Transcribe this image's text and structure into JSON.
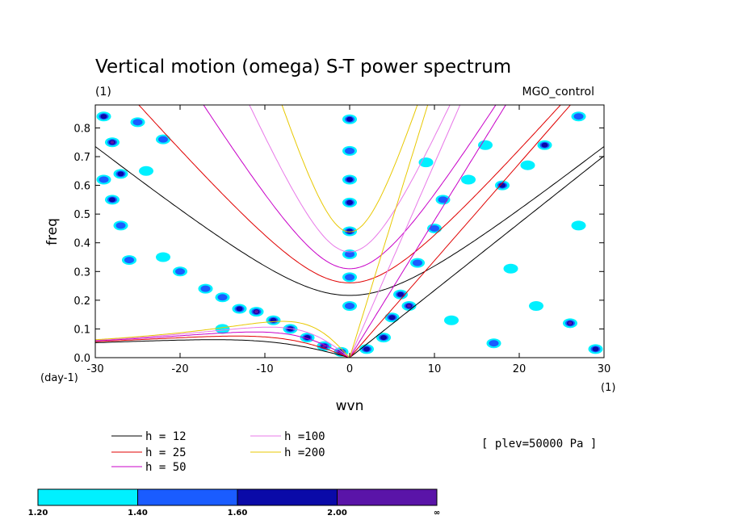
{
  "chart_data": {
    "type": "heatmap",
    "title": "Vertical motion (omega) S-T power spectrum",
    "unit_left": "(1)",
    "run_label": "MGO_control",
    "xlabel": "wvn",
    "ylabel": "freq",
    "x_unit": "(1)",
    "y_unit": "(day-1)",
    "xlim": [
      -30,
      30
    ],
    "ylim": [
      0.0,
      0.88
    ],
    "x_ticks": [
      -30,
      -20,
      -10,
      0,
      10,
      20,
      30
    ],
    "x_tick_labels": [
      "-30",
      "-20",
      "-10",
      "0",
      "10",
      "20",
      "30"
    ],
    "y_ticks": [
      0.0,
      0.1,
      0.2,
      0.3,
      0.4,
      0.5,
      0.6,
      0.7,
      0.8
    ],
    "y_tick_labels": [
      "0.0",
      "0.1",
      "0.2",
      "0.3",
      "0.4",
      "0.5",
      "0.6",
      "0.7",
      "0.8"
    ],
    "annotation": "[ plev=50000 Pa ]",
    "colorbar": {
      "boundaries": [
        "1.20",
        "1.40",
        "1.60",
        "2.00",
        "∞"
      ],
      "colors": [
        "#00f0ff",
        "#1a5cff",
        "#0a0aa8",
        "#5a14a8"
      ]
    },
    "dispersion_curves": [
      {
        "label": "h = 12",
        "h": 12,
        "color": "#000000"
      },
      {
        "label": "h = 25",
        "h": 25,
        "color": "#e00000"
      },
      {
        "label": "h = 50",
        "h": 50,
        "color": "#c800c8"
      },
      {
        "label": "h =100",
        "h": 100,
        "color": "#e878e8"
      },
      {
        "label": "h =200",
        "h": 200,
        "color": "#e8c800"
      }
    ],
    "power_regions": [
      {
        "wvn": -28,
        "freq": 0.75,
        "level": 3
      },
      {
        "wvn": -29,
        "freq": 0.84,
        "level": 2
      },
      {
        "wvn": -27,
        "freq": 0.64,
        "level": 2
      },
      {
        "wvn": -28,
        "freq": 0.55,
        "level": 2
      },
      {
        "wvn": -27,
        "freq": 0.46,
        "level": 1
      },
      {
        "wvn": -25,
        "freq": 0.82,
        "level": 1
      },
      {
        "wvn": -29,
        "freq": 0.62,
        "level": 1
      },
      {
        "wvn": -24,
        "freq": 0.65,
        "level": 0
      },
      {
        "wvn": -22,
        "freq": 0.76,
        "level": 1
      },
      {
        "wvn": -26,
        "freq": 0.34,
        "level": 1
      },
      {
        "wvn": -22,
        "freq": 0.35,
        "level": 0
      },
      {
        "wvn": -20,
        "freq": 0.3,
        "level": 1
      },
      {
        "wvn": -17,
        "freq": 0.24,
        "level": 1
      },
      {
        "wvn": -15,
        "freq": 0.21,
        "level": 1
      },
      {
        "wvn": -13,
        "freq": 0.17,
        "level": 2
      },
      {
        "wvn": -11,
        "freq": 0.16,
        "level": 3
      },
      {
        "wvn": -9,
        "freq": 0.13,
        "level": 2
      },
      {
        "wvn": -7,
        "freq": 0.1,
        "level": 2
      },
      {
        "wvn": -5,
        "freq": 0.07,
        "level": 2
      },
      {
        "wvn": -3,
        "freq": 0.04,
        "level": 3
      },
      {
        "wvn": -1,
        "freq": 0.02,
        "level": 3
      },
      {
        "wvn": -15,
        "freq": 0.1,
        "level": 0
      },
      {
        "wvn": 0,
        "freq": 0.83,
        "level": 2
      },
      {
        "wvn": 0,
        "freq": 0.72,
        "level": 1
      },
      {
        "wvn": 0,
        "freq": 0.62,
        "level": 2
      },
      {
        "wvn": 0,
        "freq": 0.54,
        "level": 2
      },
      {
        "wvn": 0,
        "freq": 0.44,
        "level": 2
      },
      {
        "wvn": 0,
        "freq": 0.36,
        "level": 1
      },
      {
        "wvn": 0,
        "freq": 0.28,
        "level": 1
      },
      {
        "wvn": 0,
        "freq": 0.18,
        "level": 1
      },
      {
        "wvn": 6,
        "freq": 0.22,
        "level": 2
      },
      {
        "wvn": 7,
        "freq": 0.18,
        "level": 3
      },
      {
        "wvn": 5,
        "freq": 0.14,
        "level": 2
      },
      {
        "wvn": 4,
        "freq": 0.07,
        "level": 2
      },
      {
        "wvn": 2,
        "freq": 0.03,
        "level": 2
      },
      {
        "wvn": 8,
        "freq": 0.33,
        "level": 1
      },
      {
        "wvn": 10,
        "freq": 0.45,
        "level": 1
      },
      {
        "wvn": 11,
        "freq": 0.55,
        "level": 1
      },
      {
        "wvn": 9,
        "freq": 0.68,
        "level": 0
      },
      {
        "wvn": 14,
        "freq": 0.62,
        "level": 0
      },
      {
        "wvn": 16,
        "freq": 0.74,
        "level": 0
      },
      {
        "wvn": 18,
        "freq": 0.6,
        "level": 2
      },
      {
        "wvn": 21,
        "freq": 0.67,
        "level": 0
      },
      {
        "wvn": 23,
        "freq": 0.74,
        "level": 2
      },
      {
        "wvn": 27,
        "freq": 0.84,
        "level": 1
      },
      {
        "wvn": 26,
        "freq": 0.12,
        "level": 3
      },
      {
        "wvn": 29,
        "freq": 0.03,
        "level": 2
      },
      {
        "wvn": 19,
        "freq": 0.31,
        "level": 0
      },
      {
        "wvn": 22,
        "freq": 0.18,
        "level": 0
      },
      {
        "wvn": 17,
        "freq": 0.05,
        "level": 1
      },
      {
        "wvn": 12,
        "freq": 0.13,
        "level": 0
      },
      {
        "wvn": 27,
        "freq": 0.46,
        "level": 0
      }
    ]
  }
}
